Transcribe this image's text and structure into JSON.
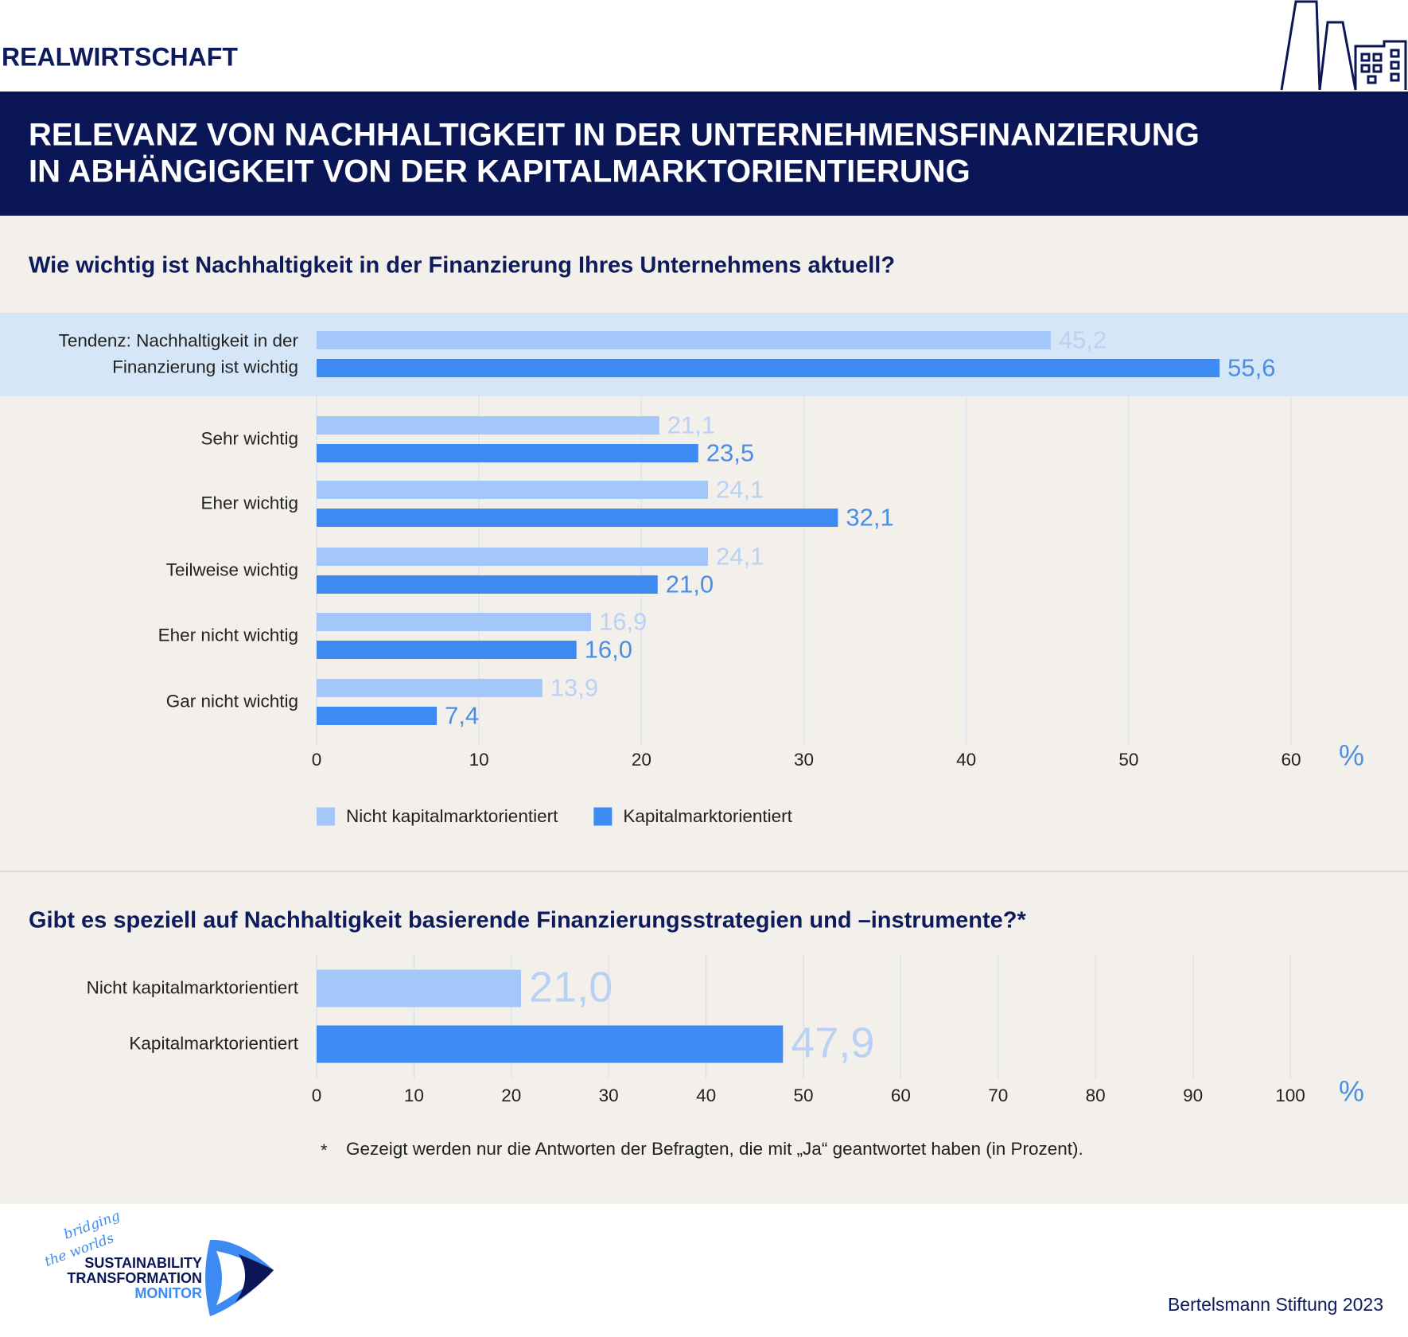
{
  "header": {
    "section": "REALWIRTSCHAFT",
    "title_lines": [
      "RELEVANZ VON NACHHALTIGKEIT IN DER UNTERNEHMENSFINANZIERUNG",
      "IN ABHÄNGIGKEIT  VON DER KAPITALMARKTORIENTIERUNG"
    ]
  },
  "chart_data": [
    {
      "type": "bar",
      "orientation": "horizontal",
      "title": "Wie wichtig ist Nachhaltigkeit in der Finanzierung Ihres Unternehmens aktuell?",
      "categories": [
        "Tendenz: Nachhaltigkeit in der Finanzierung ist wichtig",
        "Sehr wichtig",
        "Eher wichtig",
        "Teilweise wichtig",
        "Eher nicht wichtig",
        "Gar nicht wichtig"
      ],
      "series": [
        {
          "name": "Nicht kapitalmarktorientiert",
          "color": "#a3c7f8",
          "label_color": "#b9d2f4",
          "values": [
            45.2,
            21.1,
            24.1,
            24.1,
            16.9,
            13.9
          ],
          "value_labels": [
            "45,2",
            "21,1",
            "24,1",
            "24,1",
            "16,9",
            "13,9"
          ]
        },
        {
          "name": "Kapitalmarktorientiert",
          "color": "#3d8bf2",
          "label_color": "#4b8fe2",
          "values": [
            55.6,
            23.5,
            32.1,
            21.0,
            16.0,
            7.4
          ],
          "value_labels": [
            "55,6",
            "23,5",
            "32,1",
            "21,0",
            "16,0",
            "7,4"
          ]
        }
      ],
      "xlim": [
        0,
        60
      ],
      "xticks": [
        0,
        10,
        20,
        30,
        40,
        50,
        60
      ],
      "x_unit": "%",
      "grid": true,
      "legend": "bottom"
    },
    {
      "type": "bar",
      "orientation": "horizontal",
      "title": "Gibt es speziell auf Nachhaltigkeit basierende Finanzierungsstrategien und –instrumente?*",
      "categories": [
        "Nicht kapitalmarktorientiert",
        "Kapitalmarktorientiert"
      ],
      "values": [
        21.0,
        47.9
      ],
      "value_labels": [
        "21,0",
        "47,9"
      ],
      "colors": [
        "#a3c7f8",
        "#3d8bf2"
      ],
      "value_label_color": "#b9d2f4",
      "xlim": [
        0,
        100
      ],
      "xticks": [
        0,
        10,
        20,
        30,
        40,
        50,
        60,
        70,
        80,
        90,
        100
      ],
      "x_unit": "%",
      "grid": true
    }
  ],
  "footnote": {
    "marker": "*",
    "text": "Gezeigt werden nur die Antworten der Befragten, die mit „Ja“ geantwortet haben (in Prozent)."
  },
  "footer": {
    "logo": {
      "tagline_1": "bridging",
      "tagline_2": "the worlds",
      "line_1": "SUSTAINABILITY",
      "line_2": "TRANSFORMATION",
      "line_3": "MONITOR"
    },
    "credit": "Bertelsmann Stiftung 2023"
  }
}
